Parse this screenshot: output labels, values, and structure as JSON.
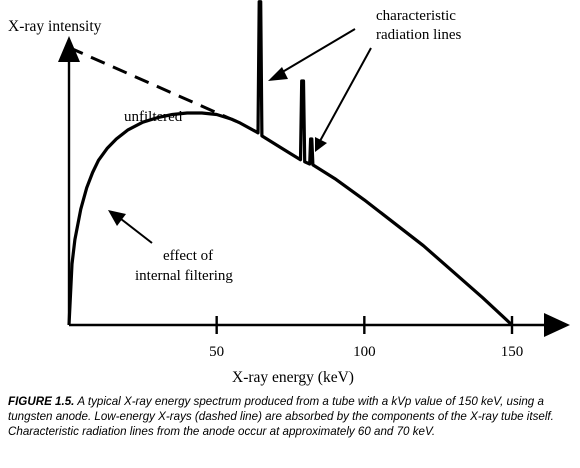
{
  "chart_data": {
    "type": "line",
    "title": "",
    "xlabel": "X-ray energy (keV)",
    "ylabel": "X-ray intensity",
    "xlim": [
      0,
      150
    ],
    "ylim": [
      0,
      10
    ],
    "x_ticks": [
      50,
      100,
      150
    ],
    "y_ticks": [],
    "grid": false,
    "series": [
      {
        "name": "",
        "style": "solid",
        "points": [
          [
            0,
            0
          ],
          [
            1,
            2
          ],
          [
            2,
            2.8
          ],
          [
            4,
            3.8
          ],
          [
            6,
            4.5
          ],
          [
            8,
            5.0
          ],
          [
            10,
            5.4
          ],
          [
            13,
            5.8
          ],
          [
            16,
            6.1
          ],
          [
            20,
            6.4
          ],
          [
            25,
            6.65
          ],
          [
            30,
            6.8
          ],
          [
            35,
            6.9
          ],
          [
            40,
            6.95
          ],
          [
            45,
            6.95
          ],
          [
            50,
            6.9
          ],
          [
            55,
            6.75
          ],
          [
            58,
            6.62
          ],
          [
            64,
            6.3
          ],
          [
            64.4,
            10.6
          ],
          [
            64.9,
            10.6
          ],
          [
            65.3,
            6.2
          ],
          [
            72,
            5.8
          ],
          [
            75,
            5.62
          ],
          [
            78.4,
            5.42
          ],
          [
            78.8,
            8.0
          ],
          [
            79.4,
            8.0
          ],
          [
            79.8,
            5.35
          ],
          [
            81.5,
            5.28
          ],
          [
            81.8,
            6.1
          ],
          [
            82.2,
            6.1
          ],
          [
            82.6,
            5.25
          ],
          [
            90,
            4.8
          ],
          [
            100,
            4.1
          ],
          [
            110,
            3.35
          ],
          [
            120,
            2.6
          ],
          [
            130,
            1.75
          ],
          [
            140,
            0.9
          ],
          [
            150,
            0
          ]
        ]
      },
      {
        "name": "",
        "style": "dashed",
        "points": [
          [
            0,
            9.1
          ],
          [
            58,
            6.62
          ]
        ]
      }
    ],
    "annotations": [
      {
        "text": "unfiltered"
      },
      {
        "text": "effect of"
      },
      {
        "text": "internal filtering"
      },
      {
        "text": "characteristic"
      },
      {
        "text": "radiation lines"
      }
    ]
  },
  "caption": {
    "label": "FIGURE 1.5.",
    "text": "A typical X-ray energy spectrum produced from a tube with a kVp value of 150 keV, using a tungsten anode. Low-energy X-rays (dashed line) are absorbed by the components of the X-ray tube itself. Characteristic radiation lines from the anode occur at approximately 60 and 70 keV."
  }
}
